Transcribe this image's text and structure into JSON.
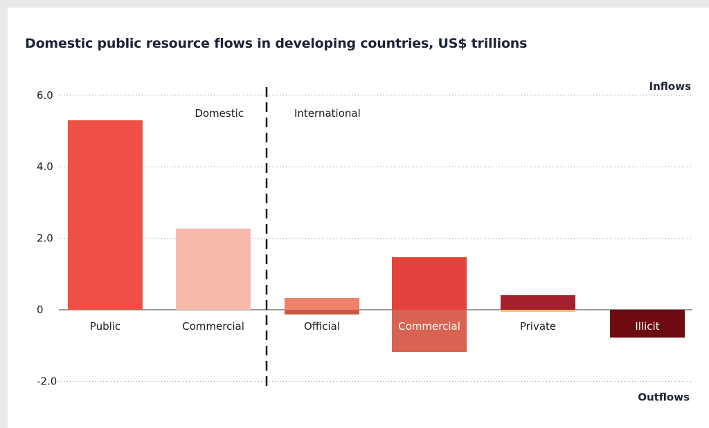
{
  "title": "Domestic public resource flows in developing countries, US$ trillions",
  "chart_data": {
    "type": "bar",
    "title": "Domestic public resource flows in developing countries, US$ trillions",
    "ylim": [
      -2.0,
      6.0
    ],
    "yticks": [
      {
        "value": 6.0,
        "label": "6.0"
      },
      {
        "value": 4.0,
        "label": "4.0"
      },
      {
        "value": 2.0,
        "label": "2.0"
      },
      {
        "value": 0,
        "label": "0"
      },
      {
        "value": -2.0,
        "label": "-2.0"
      }
    ],
    "grid": true,
    "direction_labels": {
      "top": "Inflows",
      "bottom": "Outflows"
    },
    "groups": [
      {
        "label": "Domestic",
        "categories": [
          "Public",
          "Commercial"
        ]
      },
      {
        "label": "International",
        "categories": [
          "Official",
          "Commercial",
          "Private",
          "Illicit"
        ]
      }
    ],
    "bars": [
      {
        "category": "Public",
        "group": "Domestic",
        "inflow": 5.3,
        "outflow": 0,
        "inflow_color": "#ef5045",
        "outflow_color": "#ef5045",
        "label_color": "#1a1a1a"
      },
      {
        "category": "Commercial",
        "group": "Domestic",
        "inflow": 2.27,
        "outflow": 0,
        "inflow_color": "#f8bbab",
        "outflow_color": "#f8bbab",
        "label_color": "#1a1a1a"
      },
      {
        "category": "Official",
        "group": "International",
        "inflow": 0.33,
        "outflow": -0.13,
        "inflow_color": "#f0826b",
        "outflow_color": "#c9584a",
        "label_color": "#1a1a1a"
      },
      {
        "category": "Commercial",
        "group": "International",
        "inflow": 1.47,
        "outflow": -1.18,
        "inflow_color": "#e3433c",
        "outflow_color": "#d96353",
        "label_color": "#ffffff"
      },
      {
        "category": "Private",
        "group": "International",
        "inflow": 0.41,
        "outflow": -0.06,
        "inflow_color": "#a3202e",
        "outflow_color": "#e8c872",
        "label_color": "#1a1a1a"
      },
      {
        "category": "Illicit",
        "group": "International",
        "inflow": 0,
        "outflow": -0.78,
        "inflow_color": "#6e0b10",
        "outflow_color": "#6e0b10",
        "label_color": "#ffffff"
      }
    ]
  }
}
